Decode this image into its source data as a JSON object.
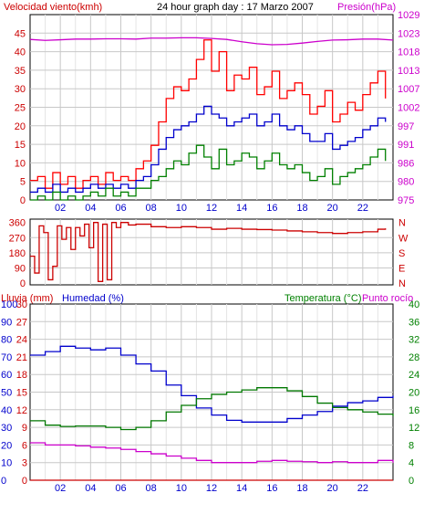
{
  "header": {
    "left_label": "Velocidad viento(kmh)",
    "center_label": "24 hour graph day : 17 Marzo 2007",
    "right_label": "Presión(hPa)"
  },
  "colors": {
    "wind_max": "#ff0000",
    "wind_avg": "#0000cc",
    "wind_min": "#008000",
    "pressure": "#cc00cc",
    "direction": "#cc0000",
    "humidity": "#0000cc",
    "temperature": "#007700",
    "dewpoint": "#cc00cc",
    "rain": "#cc0000",
    "label_red": "#cc0000",
    "label_blue": "#0000cc",
    "label_green": "#008000",
    "label_magenta": "#cc00cc",
    "grid": "#c8c8c8",
    "frame": "#000000"
  },
  "chart_data": [
    {
      "type": "line",
      "title": "24 hour graph day : 17 Marzo 2007",
      "ylabel_left": "Velocidad viento(kmh)",
      "ylabel_right": "Presión(hPa)",
      "xlabel": "",
      "x_ticks": [
        "02",
        "04",
        "06",
        "08",
        "10",
        "12",
        "14",
        "16",
        "18",
        "20",
        "22"
      ],
      "y_left_ticks": [
        "0",
        "5",
        "10",
        "15",
        "20",
        "25",
        "30",
        "35",
        "40",
        "45"
      ],
      "y_right_ticks": [
        "975",
        "980",
        "986",
        "991",
        "997",
        "1002",
        "1007",
        "1013",
        "1018",
        "1023",
        "1029"
      ],
      "xlim": [
        0,
        24
      ],
      "ylim_left": [
        0,
        47.5
      ],
      "ylim_right": [
        975,
        1031
      ],
      "series": [
        {
          "key": "wind_max",
          "axis": "left",
          "x": [
            0,
            0.5,
            1,
            1.5,
            2,
            2.5,
            3,
            3.5,
            4,
            4.5,
            5,
            5.5,
            6,
            6.5,
            7,
            7.5,
            8,
            8.5,
            9,
            9.5,
            10,
            10.5,
            11,
            11.5,
            12,
            12.5,
            13,
            13.5,
            14,
            14.5,
            15,
            15.5,
            16,
            16.5,
            17,
            17.5,
            18,
            18.5,
            19,
            19.5,
            20,
            20.5,
            21,
            21.5,
            22,
            22.5,
            23,
            23.5
          ],
          "values": [
            5,
            6,
            3,
            7,
            4,
            6,
            3,
            5,
            6,
            4,
            7,
            5,
            6,
            5,
            8,
            10,
            14,
            20,
            26,
            29,
            28,
            31,
            36,
            41,
            33,
            38,
            28,
            32,
            31,
            34,
            27,
            29,
            33,
            26,
            28,
            30,
            27,
            22,
            24,
            28,
            20,
            22,
            25,
            23,
            27,
            30,
            33,
            26
          ]
        },
        {
          "key": "wind_avg",
          "axis": "left",
          "x": [
            0,
            0.5,
            1,
            1.5,
            2,
            2.5,
            3,
            3.5,
            4,
            4.5,
            5,
            5.5,
            6,
            6.5,
            7,
            7.5,
            8,
            8.5,
            9,
            9.5,
            10,
            10.5,
            11,
            11.5,
            12,
            12.5,
            13,
            13.5,
            14,
            14.5,
            15,
            15.5,
            16,
            16.5,
            17,
            17.5,
            18,
            18.5,
            19,
            19.5,
            20,
            20.5,
            21,
            21.5,
            22,
            22.5,
            23,
            23.5
          ],
          "values": [
            2,
            3,
            2,
            4,
            2,
            3,
            2,
            3,
            4,
            3,
            4,
            3,
            4,
            3,
            5,
            6,
            9,
            13,
            16,
            18,
            19,
            20,
            22,
            24,
            22,
            21,
            19,
            20,
            21,
            22,
            19,
            20,
            22,
            19,
            18,
            19,
            17,
            15,
            15,
            17,
            13,
            14,
            15,
            16,
            18,
            19,
            21,
            20
          ]
        },
        {
          "key": "wind_min",
          "axis": "left",
          "x": [
            0,
            0.5,
            1,
            1.5,
            2,
            2.5,
            3,
            3.5,
            4,
            4.5,
            5,
            5.5,
            6,
            6.5,
            7,
            7.5,
            8,
            8.5,
            9,
            9.5,
            10,
            10.5,
            11,
            11.5,
            12,
            12.5,
            13,
            13.5,
            14,
            14.5,
            15,
            15.5,
            16,
            16.5,
            17,
            17.5,
            18,
            18.5,
            19,
            19.5,
            20,
            20.5,
            21,
            21.5,
            22,
            22.5,
            23,
            23.5
          ],
          "values": [
            0,
            1,
            0,
            2,
            0,
            1,
            0,
            1,
            2,
            1,
            3,
            1,
            2,
            1,
            3,
            3,
            5,
            6,
            8,
            10,
            9,
            12,
            14,
            11,
            8,
            13,
            9,
            10,
            12,
            11,
            8,
            10,
            12,
            9,
            8,
            9,
            7,
            5,
            6,
            8,
            4,
            6,
            7,
            8,
            9,
            11,
            13,
            10
          ]
        },
        {
          "key": "pressure",
          "axis": "right",
          "x": [
            0,
            1,
            2,
            3,
            4,
            5,
            6,
            7,
            8,
            9,
            10,
            11,
            12,
            13,
            14,
            15,
            16,
            17,
            18,
            19,
            20,
            21,
            22,
            23,
            24
          ],
          "values": [
            1023.5,
            1023.2,
            1023.4,
            1023.6,
            1023.6,
            1023.7,
            1023.7,
            1023.6,
            1023.9,
            1023.9,
            1024.0,
            1024.0,
            1023.8,
            1023.5,
            1022.8,
            1022.2,
            1021.9,
            1022.0,
            1022.4,
            1022.9,
            1023.3,
            1023.4,
            1023.6,
            1023.6,
            1023.3
          ]
        }
      ]
    },
    {
      "type": "line",
      "ylabel_left": "",
      "y_left_ticks": [
        "0",
        "90",
        "180",
        "270",
        "360"
      ],
      "y_right_ticks": [
        "N",
        "E",
        "S",
        "W",
        "N"
      ],
      "xlim": [
        0,
        24
      ],
      "ylim_left": [
        -10,
        380
      ],
      "series": [
        {
          "key": "direction",
          "axis": "left",
          "x": [
            0,
            0.3,
            0.6,
            0.9,
            1.2,
            1.5,
            1.8,
            2.1,
            2.4,
            2.7,
            3.0,
            3.3,
            3.6,
            3.9,
            4.2,
            4.5,
            4.8,
            5.1,
            5.4,
            5.7,
            6.0,
            6.5,
            7,
            8,
            9,
            10,
            11,
            12,
            13,
            14,
            15,
            16,
            17,
            18,
            19,
            20,
            21,
            22,
            23,
            23.5
          ],
          "values": [
            160,
            60,
            340,
            300,
            20,
            100,
            340,
            260,
            330,
            200,
            330,
            280,
            350,
            210,
            360,
            10,
            350,
            20,
            360,
            330,
            360,
            345,
            350,
            335,
            330,
            335,
            330,
            320,
            325,
            320,
            318,
            315,
            310,
            305,
            300,
            295,
            300,
            305,
            320,
            325
          ]
        }
      ]
    },
    {
      "type": "line",
      "ylabel_left": "Lluvia (mm)",
      "ylabel_left2": "Humedad (%)",
      "ylabel_right": "Temperatura (°C)",
      "ylabel_right2": "Punto rocío",
      "x_ticks": [
        "02",
        "04",
        "06",
        "08",
        "10",
        "12",
        "14",
        "16",
        "18",
        "20",
        "22"
      ],
      "y_left_ticks_rain": [
        "0",
        "3",
        "6",
        "9",
        "12",
        "15",
        "18",
        "21",
        "24",
        "27",
        "30"
      ],
      "y_left_ticks_hum": [
        "0",
        "10",
        "20",
        "30",
        "40",
        "50",
        "60",
        "70",
        "80",
        "90",
        "100"
      ],
      "y_right_ticks": [
        "0",
        "4",
        "8",
        "12",
        "16",
        "20",
        "24",
        "28",
        "32",
        "36",
        "40"
      ],
      "xlim": [
        0,
        24
      ],
      "ylim_left": [
        0,
        100
      ],
      "ylim_right": [
        0,
        40
      ],
      "series": [
        {
          "key": "humidity",
          "axis": "left",
          "x": [
            0,
            1,
            2,
            3,
            4,
            5,
            6,
            7,
            8,
            9,
            10,
            11,
            12,
            13,
            14,
            15,
            16,
            17,
            18,
            19,
            20,
            21,
            22,
            23,
            24
          ],
          "values": [
            71,
            73,
            76,
            75,
            74,
            75,
            71,
            66,
            62,
            54,
            48,
            41,
            37,
            34,
            33,
            33,
            33,
            35,
            37,
            39,
            42,
            44,
            45,
            47,
            48
          ]
        },
        {
          "key": "temperature",
          "axis": "right",
          "x": [
            0,
            1,
            2,
            3,
            4,
            5,
            6,
            7,
            8,
            9,
            10,
            11,
            12,
            13,
            14,
            15,
            16,
            17,
            18,
            19,
            20,
            21,
            22,
            23,
            24
          ],
          "values": [
            13.5,
            12.5,
            12.2,
            12.3,
            12.3,
            12.0,
            11.5,
            12.0,
            13.5,
            15.5,
            17.0,
            18.5,
            19.5,
            20.0,
            20.5,
            21.0,
            21.0,
            20.3,
            19.0,
            17.5,
            16.5,
            16.0,
            15.5,
            15.0,
            14.5
          ]
        },
        {
          "key": "dewpoint",
          "axis": "right",
          "x": [
            0,
            1,
            2,
            3,
            4,
            5,
            6,
            7,
            8,
            9,
            10,
            11,
            12,
            13,
            14,
            15,
            16,
            17,
            18,
            19,
            20,
            21,
            22,
            23,
            24
          ],
          "values": [
            8.5,
            8.0,
            8.0,
            7.8,
            7.5,
            7.3,
            7.0,
            6.5,
            6.0,
            5.5,
            5.0,
            4.5,
            4.0,
            4.0,
            4.0,
            4.3,
            4.5,
            4.3,
            4.2,
            4.0,
            4.2,
            4.0,
            4.0,
            4.5,
            4.0
          ]
        },
        {
          "key": "rain",
          "axis": "rain",
          "x": [
            0,
            24
          ],
          "values": [
            0,
            0
          ]
        }
      ]
    }
  ],
  "labels": {
    "panel2_right": [
      "N",
      "W",
      "S",
      "E",
      "N"
    ],
    "panel3_rain_title": "Lluvia (mm)",
    "panel3_hum_title": "Humedad (%)",
    "panel3_temp_title": "Temperatura (°C)",
    "panel3_dew_title": "Punto rocío"
  }
}
